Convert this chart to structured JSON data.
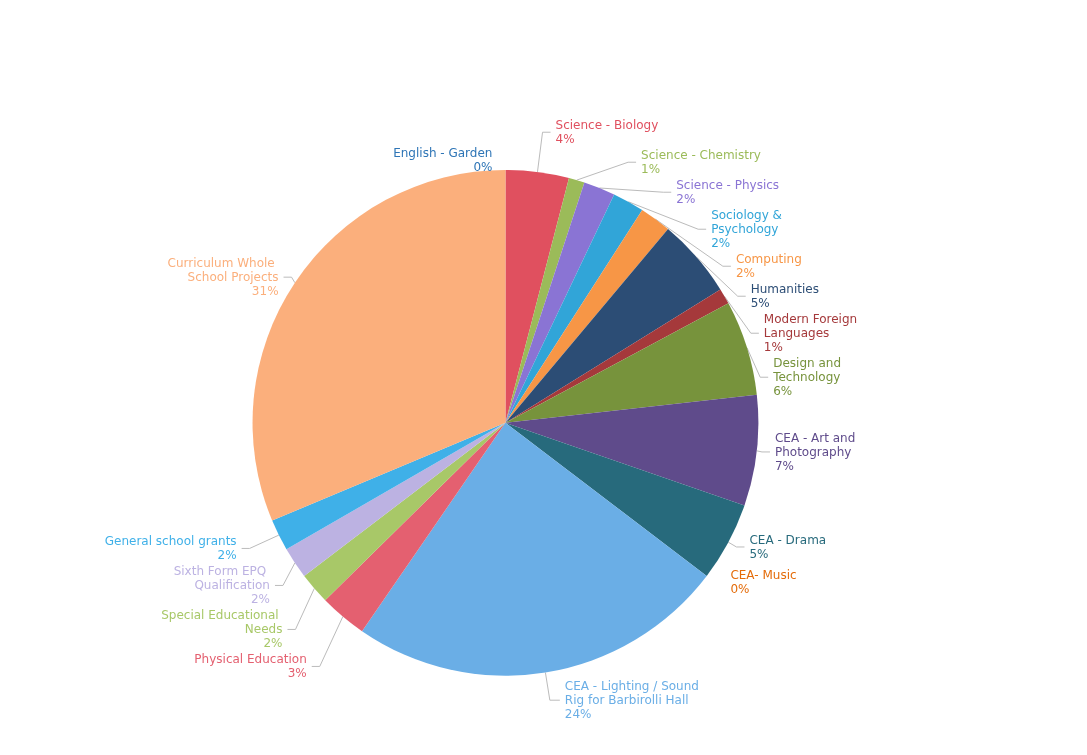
{
  "chart_data": {
    "type": "pie",
    "categories": [
      "English - Garden",
      "Science - Biology",
      "Science - Chemistry",
      "Science - Physics",
      "Sociology & Psychology",
      "Computing",
      "Humanities",
      "Modern Foreign Languages",
      "Design and Technology",
      "CEA - Art and Photography",
      "CEA - Drama",
      "CEA- Music",
      "CEA - Lighting / Sound Rig for Barbirolli Hall",
      "Physical Education",
      "Special Educational Needs",
      "Sixth Form EPQ Qualification",
      "General school grants",
      "Curriculum Whole School Projects"
    ],
    "values": [
      0,
      4,
      1,
      2,
      2,
      2,
      5,
      1,
      6,
      7,
      5,
      0,
      24,
      3,
      2,
      2,
      2,
      31
    ],
    "value_labels": [
      "0%",
      "4%",
      "1%",
      "2%",
      "2%",
      "2%",
      "5%",
      "1%",
      "6%",
      "7%",
      "5%",
      "0%",
      "24%",
      "3%",
      "2%",
      "2%",
      "2%",
      "31%"
    ],
    "colors": [
      "#2e75b6",
      "#e0505f",
      "#9bbb59",
      "#8a74d4",
      "#31a5d8",
      "#f79646",
      "#2c4d75",
      "#a5393b",
      "#77933c",
      "#5f4b8b",
      "#276a7c",
      "#e46c0a",
      "#6aaee6",
      "#e46070",
      "#a8c868",
      "#bcb2e2",
      "#3fb0e8",
      "#fbaf7c"
    ]
  }
}
